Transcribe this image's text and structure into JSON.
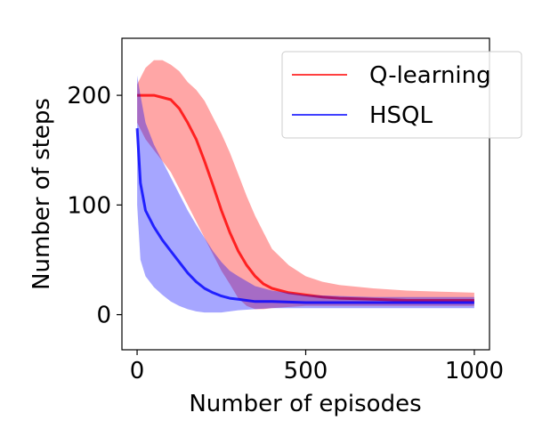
{
  "chart_data": {
    "type": "line",
    "title": "",
    "xlabel": "Number of episodes",
    "ylabel": "Number of steps",
    "xlim": [
      -45,
      1045
    ],
    "ylim": [
      -32,
      252
    ],
    "xticks": [
      0,
      500,
      1000
    ],
    "yticks": [
      0,
      100,
      200
    ],
    "x_tick_labels": [
      "0",
      "500",
      "1000"
    ],
    "y_tick_labels": [
      "0",
      "100",
      "200"
    ],
    "grid": false,
    "legend_position": "top-right",
    "series": [
      {
        "name": "Q-learning",
        "color": "#ff0000",
        "band_opacity": 0.35,
        "x": [
          0,
          25,
          50,
          75,
          100,
          125,
          150,
          175,
          200,
          225,
          250,
          275,
          300,
          325,
          350,
          375,
          400,
          450,
          500,
          550,
          600,
          700,
          800,
          900,
          1000
        ],
        "mean": [
          200,
          200,
          200,
          198,
          196,
          188,
          175,
          160,
          140,
          118,
          95,
          75,
          58,
          45,
          35,
          28,
          24,
          20,
          18,
          16,
          15,
          14,
          13,
          13,
          13
        ],
        "upper": [
          210,
          225,
          232,
          232,
          228,
          222,
          212,
          205,
          195,
          180,
          165,
          148,
          128,
          108,
          90,
          75,
          60,
          45,
          35,
          30,
          27,
          24,
          22,
          21,
          20
        ],
        "lower": [
          175,
          160,
          150,
          140,
          130,
          115,
          100,
          85,
          70,
          55,
          40,
          28,
          15,
          8,
          5,
          5,
          6,
          7,
          8,
          8,
          8,
          8,
          8,
          8,
          8
        ]
      },
      {
        "name": "HSQL",
        "color": "#0000ff",
        "band_opacity": 0.35,
        "x": [
          0,
          10,
          25,
          50,
          75,
          100,
          125,
          150,
          175,
          200,
          225,
          250,
          275,
          300,
          350,
          400,
          500,
          600,
          700,
          800,
          900,
          1000
        ],
        "mean": [
          170,
          120,
          95,
          80,
          68,
          58,
          48,
          38,
          30,
          24,
          20,
          17,
          15,
          14,
          12,
          12,
          11,
          11,
          11,
          11,
          11,
          11
        ],
        "upper": [
          218,
          200,
          175,
          155,
          140,
          125,
          110,
          95,
          82,
          70,
          58,
          48,
          40,
          35,
          26,
          22,
          18,
          17,
          16,
          16,
          16,
          16
        ],
        "lower": [
          100,
          50,
          35,
          25,
          18,
          12,
          8,
          5,
          3,
          2,
          2,
          2,
          3,
          4,
          5,
          6,
          6,
          6,
          6,
          6,
          6,
          6
        ]
      }
    ]
  }
}
